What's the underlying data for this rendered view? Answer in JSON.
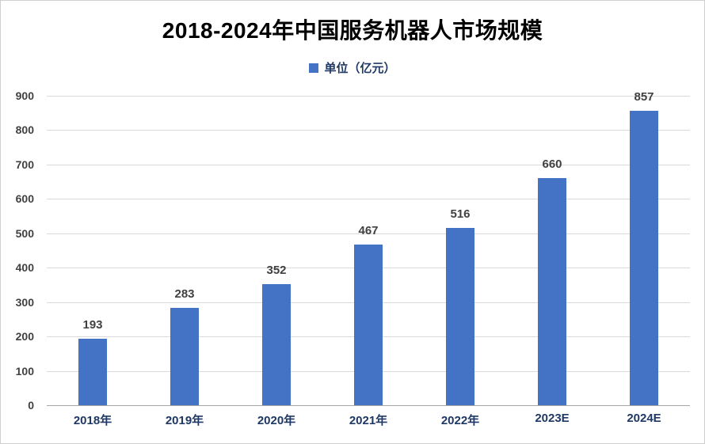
{
  "chart_data": {
    "type": "bar",
    "title": "2018-2024年中国服务机器人市场规模",
    "legend": "单位（亿元）",
    "categories": [
      "2018年",
      "2019年",
      "2020年",
      "2021年",
      "2022年",
      "2023E",
      "2024E"
    ],
    "values": [
      193,
      283,
      352,
      467,
      516,
      660,
      857
    ],
    "ylabel": "",
    "xlabel": "",
    "ylim": [
      0,
      900
    ],
    "ytick": 100,
    "grid": true,
    "legend_position": "top",
    "bar_color": "#4472c4",
    "gridline_color": "#d9d9d9",
    "axis_label_color": "#1f3864",
    "value_label_color": "#404040"
  }
}
